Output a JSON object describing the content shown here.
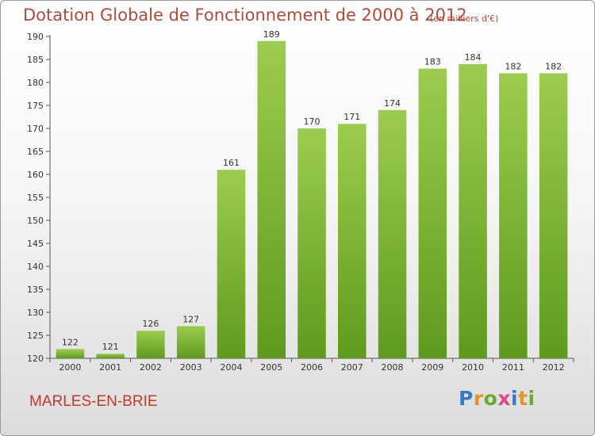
{
  "header": {
    "title": "Dotation Globale de Fonctionnement de 2000 à 2012",
    "subtitle": "(en milliers d'€)"
  },
  "footer": {
    "commune": "MARLES-EN-BRIE",
    "logo_letters": [
      "P",
      "r",
      "o",
      "x",
      "i",
      "t",
      "i"
    ]
  },
  "colors": {
    "bar_top": "#9ccc4f",
    "bar_bottom": "#5f9a1e",
    "title": "#b04a3a",
    "commune": "#c0392b",
    "logo": [
      "#3a78c2",
      "#e8922a",
      "#6aab2e",
      "#d94a8a",
      "#3a78c2",
      "#e8922a",
      "#6aab2e"
    ]
  },
  "chart_data": {
    "type": "bar",
    "title": "Dotation Globale de Fonctionnement de 2000 à 2012",
    "subtitle": "(en milliers d'€)",
    "xlabel": "",
    "ylabel": "",
    "categories": [
      "2000",
      "2001",
      "2002",
      "2003",
      "2004",
      "2005",
      "2006",
      "2007",
      "2008",
      "2009",
      "2010",
      "2011",
      "2012"
    ],
    "values": [
      122,
      121,
      126,
      127,
      161,
      189,
      170,
      171,
      174,
      183,
      184,
      182,
      182
    ],
    "ylim": [
      120,
      190
    ],
    "yticks": [
      120,
      125,
      130,
      135,
      140,
      145,
      150,
      155,
      160,
      165,
      170,
      175,
      180,
      185,
      190
    ],
    "grid": false,
    "legend": "none"
  }
}
